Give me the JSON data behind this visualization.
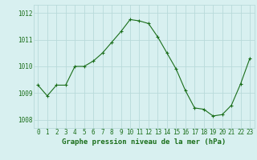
{
  "x": [
    0,
    1,
    2,
    3,
    4,
    5,
    6,
    7,
    8,
    9,
    10,
    11,
    12,
    13,
    14,
    15,
    16,
    17,
    18,
    19,
    20,
    21,
    22,
    23
  ],
  "y": [
    1009.3,
    1008.9,
    1009.3,
    1009.3,
    1010.0,
    1010.0,
    1010.2,
    1010.5,
    1010.9,
    1011.3,
    1011.75,
    1011.7,
    1011.6,
    1011.1,
    1010.5,
    1009.9,
    1009.1,
    1008.45,
    1008.4,
    1008.15,
    1008.2,
    1008.55,
    1009.35,
    1010.3
  ],
  "line_color": "#1a6e1a",
  "marker": "+",
  "marker_size": 3.5,
  "marker_color": "#1a6e1a",
  "bg_color": "#d8f0f0",
  "grid_color": "#b8dada",
  "xlabel": "Graphe pression niveau de la mer (hPa)",
  "xlabel_color": "#1a6e1a",
  "xlabel_fontsize": 6.5,
  "tick_color": "#1a6e1a",
  "tick_fontsize": 5.5,
  "ylim": [
    1007.7,
    1012.3
  ],
  "yticks": [
    1008,
    1009,
    1010,
    1011,
    1012
  ],
  "xticks": [
    0,
    1,
    2,
    3,
    4,
    5,
    6,
    7,
    8,
    9,
    10,
    11,
    12,
    13,
    14,
    15,
    16,
    17,
    18,
    19,
    20,
    21,
    22,
    23
  ]
}
